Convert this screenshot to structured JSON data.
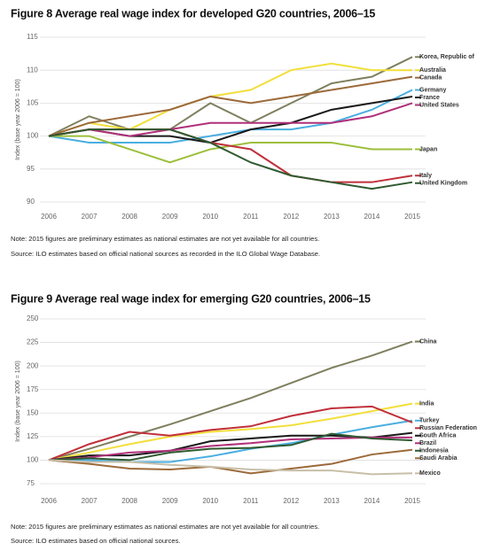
{
  "chart_data": [
    {
      "type": "line",
      "title": "Figure 8  Average real wage index for developed G20 countries, 2006–15",
      "y_label": "Index (base year 2006 = 100)",
      "note": "Note: 2015 figures are preliminary estimates as national estimates are not yet available for all countries.",
      "source": "Source: ILO estimates based on official national sources as recorded in the ILO Global Wage Database.",
      "categories": [
        "2006",
        "2007",
        "2008",
        "2009",
        "2010",
        "2011",
        "2012",
        "2013",
        "2014",
        "2015"
      ],
      "ylim": [
        90,
        115
      ],
      "yticks": [
        90,
        95,
        100,
        105,
        110,
        115
      ],
      "grid": true,
      "series": [
        {
          "name": "Korea, Republic of",
          "color": "#7f7f5f",
          "values": [
            100,
            103,
            101,
            101,
            105,
            102,
            105,
            108,
            109,
            112
          ]
        },
        {
          "name": "Australia",
          "color": "#f2df3a",
          "values": [
            100,
            102,
            101,
            104,
            106,
            107,
            110,
            111,
            110,
            110
          ]
        },
        {
          "name": "Canada",
          "color": "#9c6a3a",
          "values": [
            100,
            102,
            103,
            104,
            106,
            105,
            106,
            107,
            108,
            109
          ]
        },
        {
          "name": "Germany",
          "color": "#4aaee0",
          "values": [
            100,
            99,
            99,
            99,
            100,
            101,
            101,
            102,
            104,
            107
          ]
        },
        {
          "name": "France",
          "color": "#1a1a1a",
          "values": [
            100,
            101,
            100,
            100,
            99,
            101,
            102,
            104,
            105,
            106
          ]
        },
        {
          "name": "United States",
          "color": "#b0307a",
          "values": [
            100,
            101,
            100,
            101,
            102,
            102,
            102,
            102,
            103,
            105
          ]
        },
        {
          "name": "Japan",
          "color": "#9cbf3a",
          "values": [
            100,
            100,
            98,
            96,
            98,
            99,
            99,
            99,
            98,
            98
          ]
        },
        {
          "name": "Italy",
          "color": "#c0303a",
          "values": [
            100,
            101,
            101,
            101,
            99,
            98,
            94,
            93,
            93,
            94
          ]
        },
        {
          "name": "United Kingdom",
          "color": "#2f5a30",
          "values": [
            100,
            101,
            101,
            101,
            99,
            96,
            94,
            93,
            92,
            93
          ]
        }
      ]
    },
    {
      "type": "line",
      "title": "Figure 9  Average real wage index for emerging G20 countries, 2006–15",
      "y_label": "Index (base year 2006 = 100)",
      "note": "Note: 2015 figures are preliminary estimates as national estimates are not yet available for all countries.",
      "source": "Source: ILO estimates based on official national sources.",
      "categories": [
        "2006",
        "2007",
        "2008",
        "2009",
        "2010",
        "2011",
        "2012",
        "2013",
        "2014",
        "2015"
      ],
      "ylim": [
        75,
        250
      ],
      "yticks": [
        75,
        100,
        125,
        150,
        175,
        200,
        225,
        250
      ],
      "grid": true,
      "series": [
        {
          "name": "China",
          "color": "#7f7f5f",
          "values": [
            100,
            112,
            125,
            138,
            152,
            166,
            182,
            198,
            211,
            226
          ]
        },
        {
          "name": "India",
          "color": "#f2df3a",
          "values": [
            100,
            108,
            117,
            125,
            130,
            133,
            137,
            144,
            152,
            160
          ]
        },
        {
          "name": "Turkey",
          "color": "#4aaee0",
          "values": [
            100,
            100,
            98,
            98,
            104,
            112,
            118,
            127,
            135,
            142
          ]
        },
        {
          "name": "Russian Federation",
          "color": "#c0303a",
          "values": [
            100,
            117,
            130,
            126,
            132,
            136,
            147,
            155,
            157,
            140
          ]
        },
        {
          "name": "South Africa",
          "color": "#1a1a1a",
          "values": [
            100,
            105,
            105,
            110,
            120,
            123,
            126,
            126,
            124,
            129
          ]
        },
        {
          "name": "Brazil",
          "color": "#b0307a",
          "values": [
            100,
            103,
            108,
            110,
            115,
            118,
            122,
            123,
            124,
            124
          ]
        },
        {
          "name": "Indonesia",
          "color": "#2f5a30",
          "values": [
            100,
            102,
            100,
            108,
            112,
            113,
            116,
            128,
            123,
            121
          ]
        },
        {
          "name": "Saudi Arabia",
          "color": "#9c6a3a",
          "values": [
            100,
            96,
            91,
            90,
            93,
            86,
            91,
            96,
            106,
            111
          ]
        },
        {
          "name": "Mexico",
          "color": "#c8bfa8",
          "values": [
            100,
            98,
            98,
            95,
            93,
            90,
            89,
            89,
            85,
            86
          ]
        }
      ]
    }
  ]
}
